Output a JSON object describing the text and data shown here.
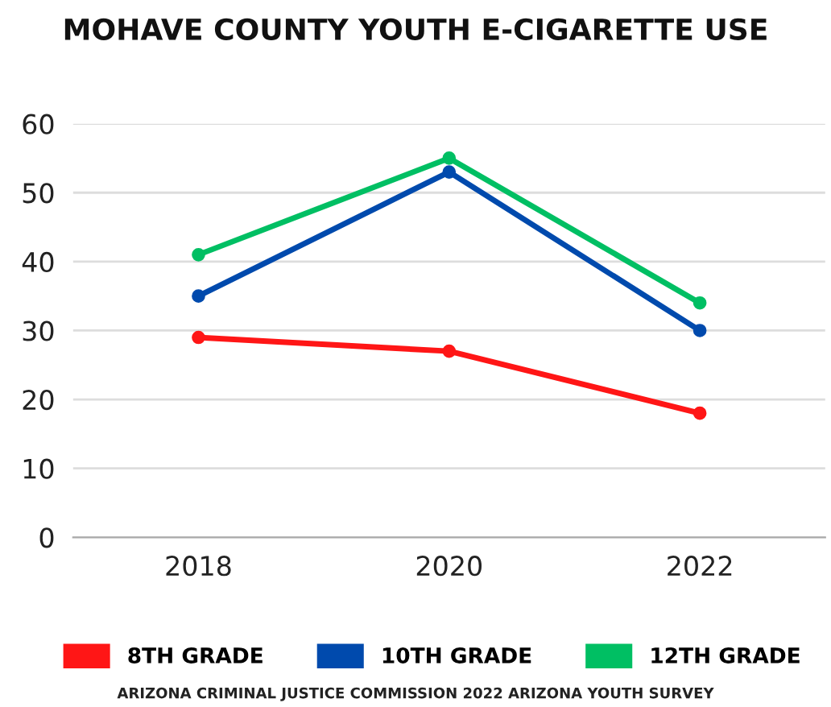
{
  "chart_data": {
    "type": "line",
    "title": "MOHAVE COUNTY YOUTH E-CIGARETTE USE",
    "categories": [
      "2018",
      "2020",
      "2022"
    ],
    "series": [
      {
        "name": "8TH GRADE",
        "color": "#ff1616",
        "values": [
          29,
          27,
          18
        ]
      },
      {
        "name": "10TH GRADE",
        "color": "#004aad",
        "values": [
          35,
          53,
          30
        ]
      },
      {
        "name": "12TH GRADE",
        "color": "#00bf63",
        "values": [
          41,
          55,
          34
        ]
      }
    ],
    "ylim": [
      0,
      60
    ],
    "yticks": [
      0,
      10,
      20,
      30,
      40,
      50,
      60
    ],
    "grid": "y",
    "legend": "bottom",
    "marker": "circle",
    "line_style": "solid",
    "annotations": [
      "ARIZONA CRIMINAL JUSTICE COMMISSION 2022 ARIZONA YOUTH SURVEY"
    ]
  }
}
